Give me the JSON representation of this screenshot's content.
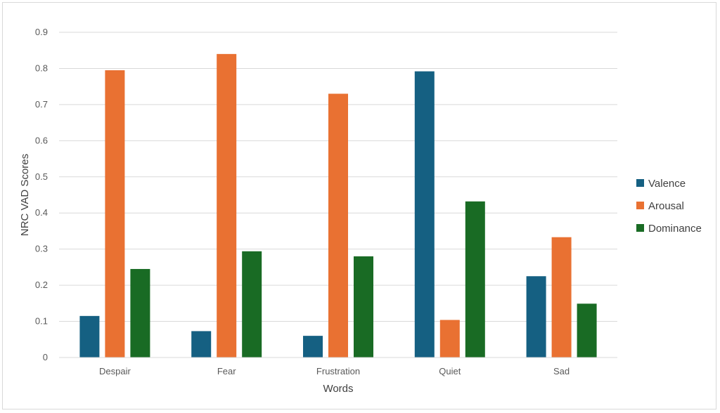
{
  "chart_data": {
    "type": "bar",
    "title": "",
    "xlabel": "Words",
    "ylabel": "NRC VAD Scores",
    "categories": [
      "Despair",
      "Fear",
      "Frustration",
      "Quiet",
      "Sad"
    ],
    "series": [
      {
        "name": "Valence",
        "color": "#156082",
        "values": [
          0.115,
          0.073,
          0.06,
          0.792,
          0.225
        ]
      },
      {
        "name": "Arousal",
        "color": "#E97132",
        "values": [
          0.795,
          0.84,
          0.73,
          0.104,
          0.333
        ]
      },
      {
        "name": "Dominance",
        "color": "#196B24",
        "values": [
          0.245,
          0.294,
          0.28,
          0.432,
          0.149
        ]
      }
    ],
    "ylim": [
      0,
      0.9
    ],
    "yticks": [
      "0",
      "0.1",
      "0.2",
      "0.3",
      "0.4",
      "0.5",
      "0.6",
      "0.7",
      "0.8",
      "0.9"
    ],
    "grid": true,
    "legend": "right"
  }
}
